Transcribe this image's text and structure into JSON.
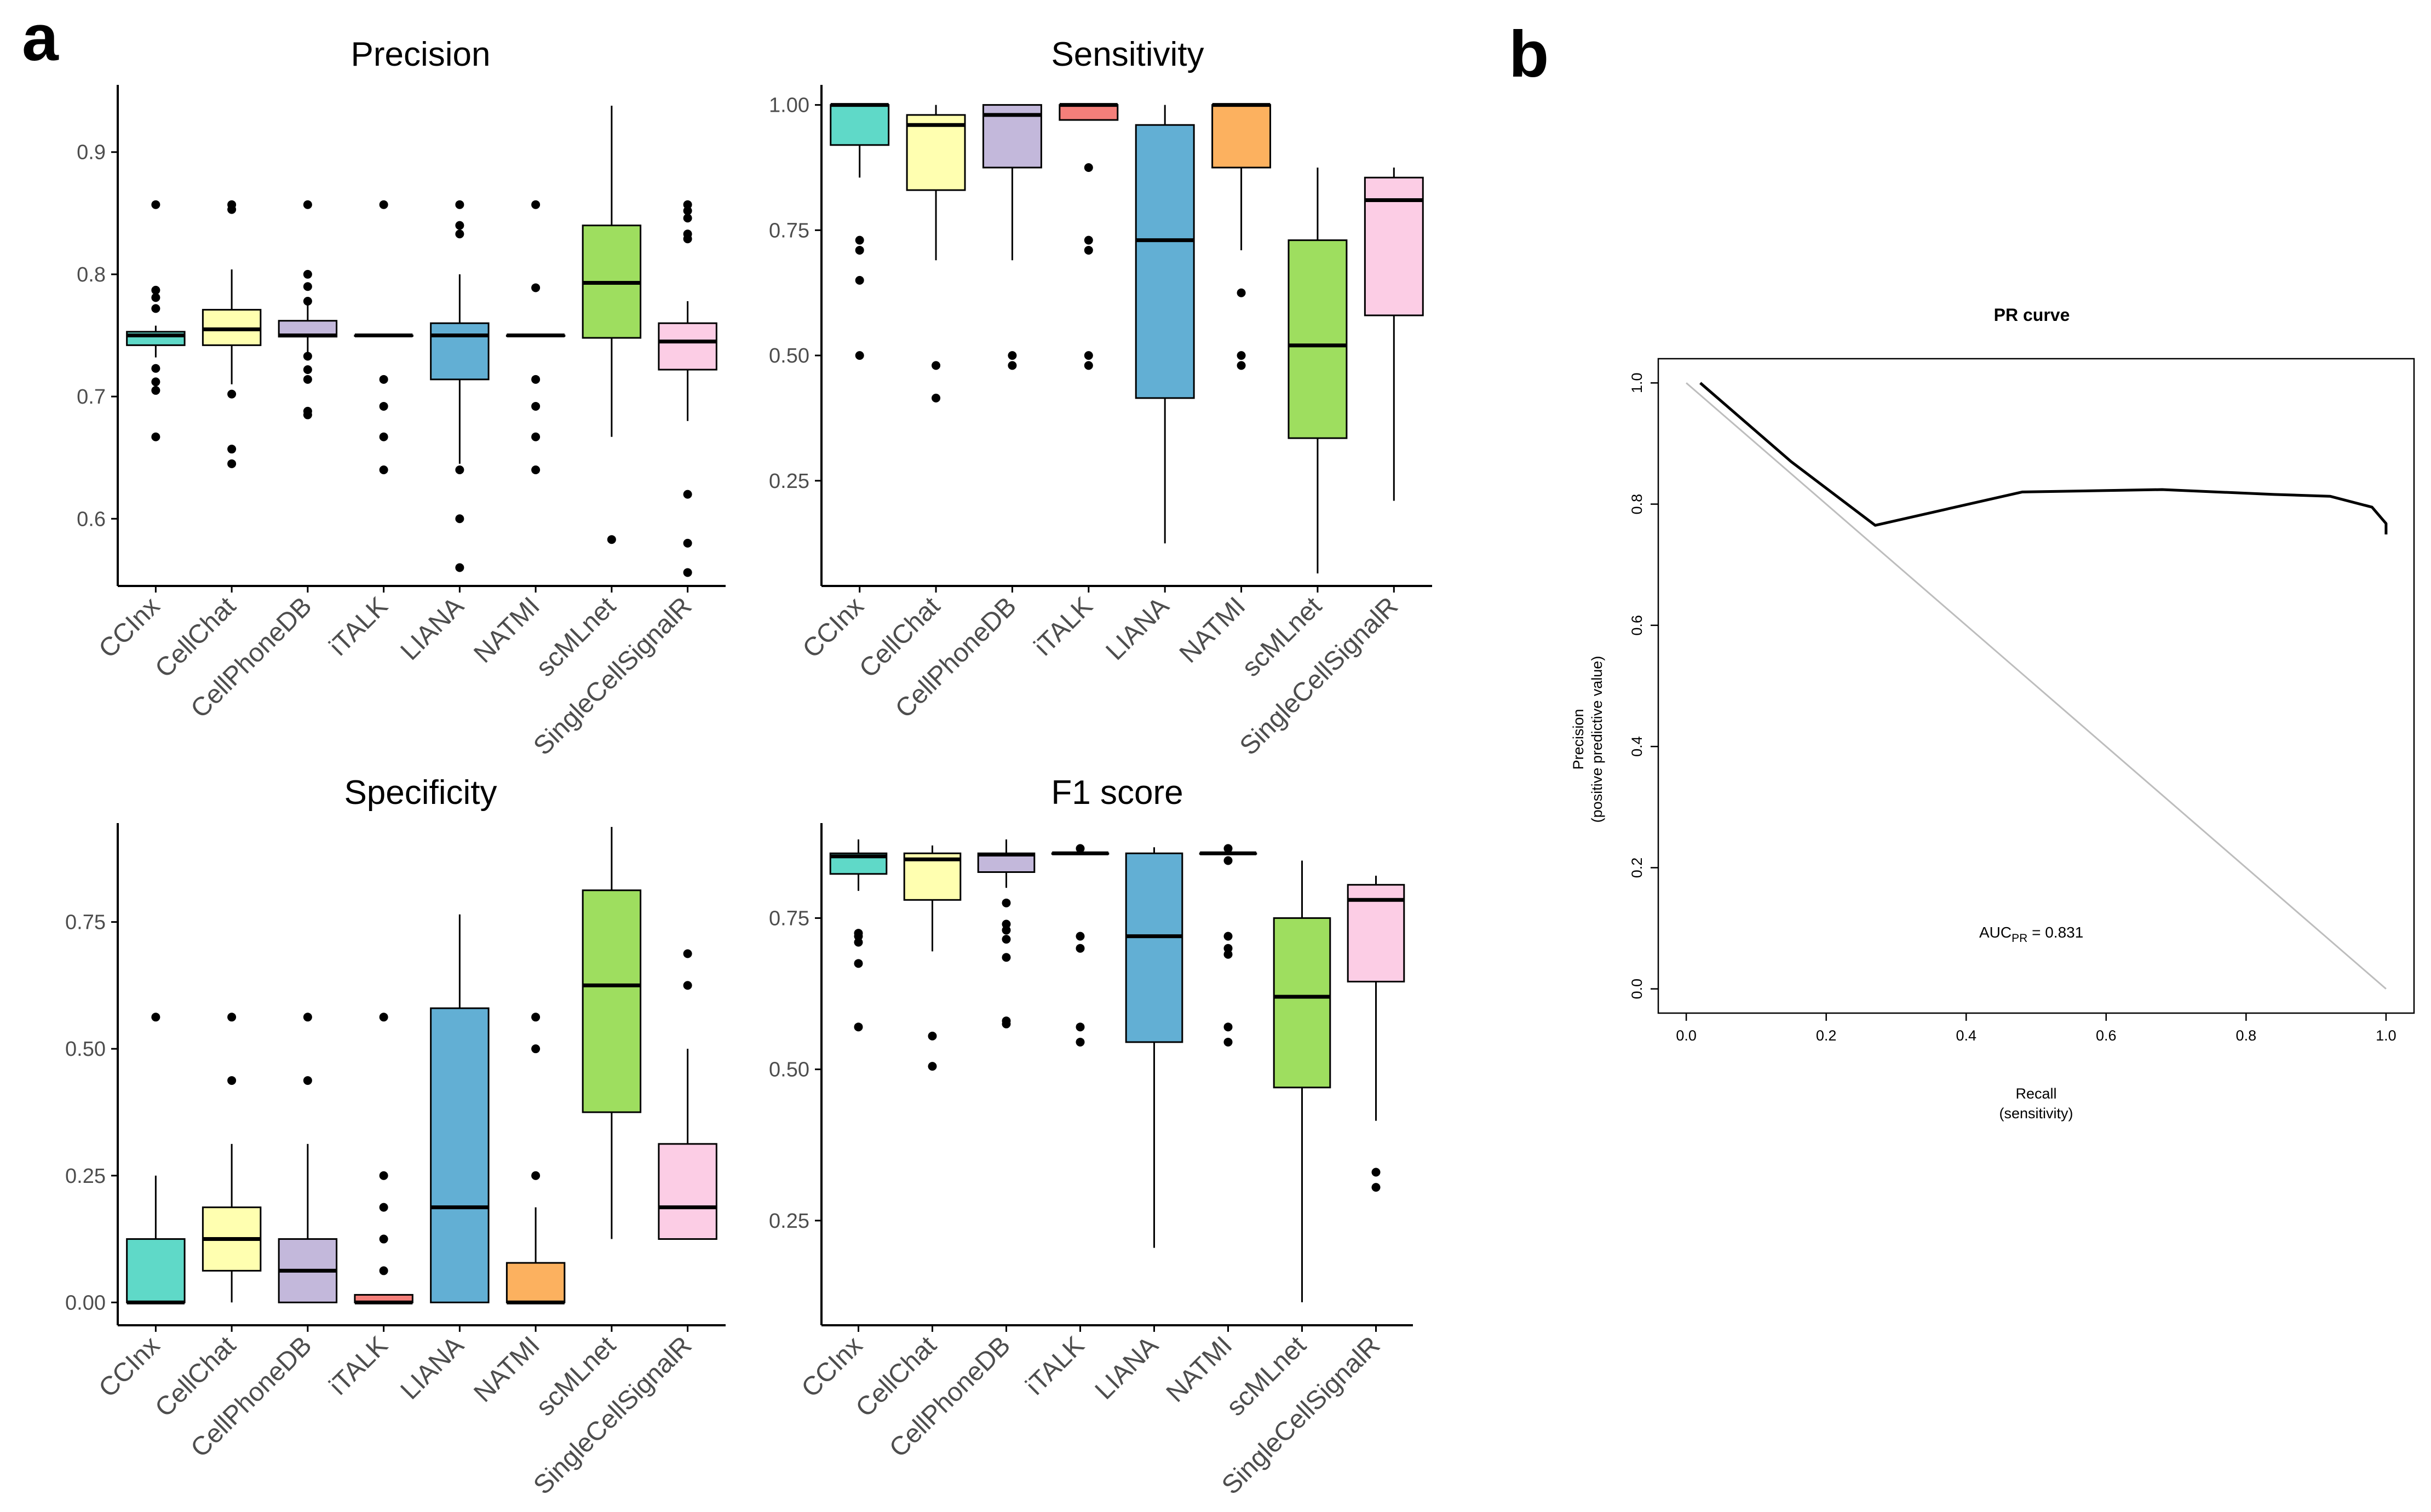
{
  "panel_labels": {
    "a": "a",
    "b": "b"
  },
  "colors": {
    "CCInx": "#5fd9c8",
    "CellChat": "#ffffb0",
    "CellPhoneDB": "#c3b8db",
    "iTALK": "#f47f7a",
    "LIANA": "#62afd4",
    "NATMI": "#fcb15f",
    "scMLnet": "#9ede5f",
    "SingleCellSignalR": "#fccde5",
    "axis": "#000000",
    "tick_text": "#4d4d4d",
    "diagonal": "#bdbdbd"
  },
  "chart_data": [
    {
      "type": "boxplot",
      "title": "Precision",
      "categories": [
        "CCInx",
        "CellChat",
        "CellPhoneDB",
        "iTALK",
        "LIANA",
        "NATMI",
        "scMLnet",
        "SingleCellSignalR"
      ],
      "ylim": [
        0.545,
        0.955
      ],
      "yticks": [
        {
          "v": 0.6,
          "label": "0.6"
        },
        {
          "v": 0.7,
          "label": "0.7"
        },
        {
          "v": 0.8,
          "label": "0.8"
        },
        {
          "v": 0.9,
          "label": "0.9"
        }
      ],
      "boxes": [
        {
          "q1": 0.742,
          "median": 0.75,
          "q3": 0.753,
          "lo": 0.732,
          "hi": 0.758,
          "outliers": [
            0.857,
            0.787,
            0.781,
            0.772,
            0.723,
            0.712,
            0.705,
            0.667
          ]
        },
        {
          "q1": 0.742,
          "median": 0.755,
          "q3": 0.771,
          "lo": 0.71,
          "hi": 0.804,
          "outliers": [
            0.857,
            0.853,
            0.702,
            0.657,
            0.645
          ]
        },
        {
          "q1": 0.749,
          "median": 0.75,
          "q3": 0.762,
          "lo": 0.734,
          "hi": 0.775,
          "outliers": [
            0.857,
            0.8,
            0.79,
            0.778,
            0.733,
            0.722,
            0.714,
            0.688,
            0.685
          ]
        },
        {
          "q1": 0.75,
          "median": 0.75,
          "q3": 0.75,
          "lo": 0.75,
          "hi": 0.75,
          "outliers": [
            0.857,
            0.714,
            0.692,
            0.667,
            0.64
          ]
        },
        {
          "q1": 0.714,
          "median": 0.75,
          "q3": 0.76,
          "lo": 0.645,
          "hi": 0.8,
          "outliers": [
            0.857,
            0.84,
            0.833,
            0.64,
            0.6,
            0.56
          ]
        },
        {
          "q1": 0.75,
          "median": 0.75,
          "q3": 0.75,
          "lo": 0.75,
          "hi": 0.75,
          "outliers": [
            0.857,
            0.789,
            0.714,
            0.692,
            0.667,
            0.64
          ]
        },
        {
          "q1": 0.748,
          "median": 0.793,
          "q3": 0.84,
          "lo": 0.667,
          "hi": 0.938,
          "outliers": [
            0.583
          ]
        },
        {
          "q1": 0.722,
          "median": 0.745,
          "q3": 0.76,
          "lo": 0.68,
          "hi": 0.778,
          "outliers": [
            0.857,
            0.852,
            0.846,
            0.833,
            0.829,
            0.62,
            0.58,
            0.556
          ]
        }
      ]
    },
    {
      "type": "boxplot",
      "title": "Sensitivity",
      "categories": [
        "CCInx",
        "CellChat",
        "CellPhoneDB",
        "iTALK",
        "LIANA",
        "NATMI",
        "scMLnet",
        "SingleCellSignalR"
      ],
      "ylim": [
        0.04,
        1.04
      ],
      "yticks": [
        {
          "v": 0.25,
          "label": "0.25"
        },
        {
          "v": 0.5,
          "label": "0.50"
        },
        {
          "v": 0.75,
          "label": "0.75"
        },
        {
          "v": 1.0,
          "label": "1.00"
        }
      ],
      "boxes": [
        {
          "q1": 0.92,
          "median": 1.0,
          "q3": 1.0,
          "lo": 0.855,
          "hi": 1.0,
          "outliers": [
            0.73,
            0.71,
            0.65,
            0.5
          ]
        },
        {
          "q1": 0.83,
          "median": 0.96,
          "q3": 0.98,
          "lo": 0.69,
          "hi": 1.0,
          "outliers": [
            0.48,
            0.415
          ]
        },
        {
          "q1": 0.875,
          "median": 0.98,
          "q3": 1.0,
          "lo": 0.69,
          "hi": 1.0,
          "outliers": [
            0.5,
            0.48
          ]
        },
        {
          "q1": 0.97,
          "median": 1.0,
          "q3": 1.0,
          "lo": 0.97,
          "hi": 1.0,
          "outliers": [
            0.875,
            0.73,
            0.71,
            0.5,
            0.48
          ]
        },
        {
          "q1": 0.415,
          "median": 0.73,
          "q3": 0.96,
          "lo": 0.125,
          "hi": 1.0,
          "outliers": []
        },
        {
          "q1": 0.875,
          "median": 1.0,
          "q3": 1.0,
          "lo": 0.71,
          "hi": 1.0,
          "outliers": [
            0.625,
            0.5,
            0.48
          ]
        },
        {
          "q1": 0.335,
          "median": 0.52,
          "q3": 0.73,
          "lo": 0.065,
          "hi": 0.875,
          "outliers": []
        },
        {
          "q1": 0.58,
          "median": 0.81,
          "q3": 0.855,
          "lo": 0.21,
          "hi": 0.875,
          "outliers": []
        }
      ]
    },
    {
      "type": "boxplot",
      "title": "Specificity",
      "categories": [
        "CCInx",
        "CellChat",
        "CellPhoneDB",
        "iTALK",
        "LIANA",
        "NATMI",
        "scMLnet",
        "SingleCellSignalR"
      ],
      "ylim": [
        -0.045,
        0.945
      ],
      "yticks": [
        {
          "v": 0.0,
          "label": "0.00"
        },
        {
          "v": 0.25,
          "label": "0.25"
        },
        {
          "v": 0.5,
          "label": "0.50"
        },
        {
          "v": 0.75,
          "label": "0.75"
        }
      ],
      "boxes": [
        {
          "q1": 0.0,
          "median": 0.0,
          "q3": 0.125,
          "lo": 0.0,
          "hi": 0.25,
          "outliers": [
            0.5625
          ]
        },
        {
          "q1": 0.0625,
          "median": 0.125,
          "q3": 0.1875,
          "lo": 0.0,
          "hi": 0.3125,
          "outliers": [
            0.5625,
            0.4375
          ]
        },
        {
          "q1": 0.0,
          "median": 0.0625,
          "q3": 0.125,
          "lo": 0.0,
          "hi": 0.3125,
          "outliers": [
            0.5625,
            0.4375
          ]
        },
        {
          "q1": 0.0,
          "median": 0.0,
          "q3": 0.015,
          "lo": 0.0,
          "hi": 0.015,
          "outliers": [
            0.5625,
            0.25,
            0.1875,
            0.125,
            0.0625
          ]
        },
        {
          "q1": 0.0,
          "median": 0.1875,
          "q3": 0.58,
          "lo": 0.0,
          "hi": 0.765,
          "outliers": []
        },
        {
          "q1": 0.0,
          "median": 0.0,
          "q3": 0.078,
          "lo": 0.0,
          "hi": 0.1875,
          "outliers": [
            0.5625,
            0.5,
            0.25
          ]
        },
        {
          "q1": 0.375,
          "median": 0.625,
          "q3": 0.8125,
          "lo": 0.125,
          "hi": 0.9375,
          "outliers": []
        },
        {
          "q1": 0.125,
          "median": 0.1875,
          "q3": 0.3125,
          "lo": 0.125,
          "hi": 0.5,
          "outliers": [
            0.6875,
            0.625
          ]
        }
      ]
    },
    {
      "type": "boxplot",
      "title": "F1 score",
      "categories": [
        "CCInx",
        "CellChat",
        "CellPhoneDB",
        "iTALK",
        "LIANA",
        "NATMI",
        "scMLnet",
        "SingleCellSignalR"
      ],
      "ylim": [
        0.077,
        0.907
      ],
      "yticks": [
        {
          "v": 0.25,
          "label": "0.25"
        },
        {
          "v": 0.5,
          "label": "0.50"
        },
        {
          "v": 0.75,
          "label": "0.75"
        }
      ],
      "boxes": [
        {
          "q1": 0.823,
          "median": 0.852,
          "q3": 0.857,
          "lo": 0.795,
          "hi": 0.88,
          "outliers": [
            0.725,
            0.72,
            0.71,
            0.675,
            0.57
          ]
        },
        {
          "q1": 0.78,
          "median": 0.847,
          "q3": 0.857,
          "lo": 0.695,
          "hi": 0.87,
          "outliers": [
            0.555,
            0.505
          ]
        },
        {
          "q1": 0.826,
          "median": 0.855,
          "q3": 0.857,
          "lo": 0.8,
          "hi": 0.88,
          "outliers": [
            0.775,
            0.74,
            0.73,
            0.715,
            0.685,
            0.58,
            0.575
          ]
        },
        {
          "q1": 0.857,
          "median": 0.857,
          "q3": 0.857,
          "lo": 0.857,
          "hi": 0.857,
          "outliers": [
            0.865,
            0.72,
            0.7,
            0.57,
            0.545
          ]
        },
        {
          "q1": 0.545,
          "median": 0.72,
          "q3": 0.857,
          "lo": 0.205,
          "hi": 0.867,
          "outliers": []
        },
        {
          "q1": 0.857,
          "median": 0.857,
          "q3": 0.857,
          "lo": 0.857,
          "hi": 0.857,
          "outliers": [
            0.865,
            0.845,
            0.72,
            0.7,
            0.69,
            0.57,
            0.545
          ]
        },
        {
          "q1": 0.47,
          "median": 0.62,
          "q3": 0.75,
          "lo": 0.115,
          "hi": 0.845,
          "outliers": []
        },
        {
          "q1": 0.645,
          "median": 0.78,
          "q3": 0.805,
          "lo": 0.415,
          "hi": 0.82,
          "outliers": [
            0.33,
            0.305
          ]
        }
      ]
    },
    {
      "type": "line",
      "title": "PR curve",
      "xlabel_line1": "Recall",
      "xlabel_line2": "(sensitivity)",
      "ylabel_line1": "Precision",
      "ylabel_line2": "(positive predictive value)",
      "xlim": [
        -0.04,
        1.04
      ],
      "ylim": [
        -0.04,
        1.04
      ],
      "xticks": [
        {
          "v": 0.0,
          "label": "0.0"
        },
        {
          "v": 0.2,
          "label": "0.2"
        },
        {
          "v": 0.4,
          "label": "0.4"
        },
        {
          "v": 0.6,
          "label": "0.6"
        },
        {
          "v": 0.8,
          "label": "0.8"
        },
        {
          "v": 1.0,
          "label": "1.0"
        }
      ],
      "yticks": [
        {
          "v": 0.0,
          "label": "0.0"
        },
        {
          "v": 0.2,
          "label": "0.2"
        },
        {
          "v": 0.4,
          "label": "0.4"
        },
        {
          "v": 0.6,
          "label": "0.6"
        },
        {
          "v": 0.8,
          "label": "0.8"
        },
        {
          "v": 1.0,
          "label": "1.0"
        }
      ],
      "series": [
        {
          "name": "PR curve",
          "x": [
            0.02,
            0.15,
            0.27,
            0.48,
            0.68,
            0.84,
            0.92,
            0.98,
            1.0,
            1.0
          ],
          "y": [
            1.0,
            0.87,
            0.765,
            0.82,
            0.824,
            0.816,
            0.813,
            0.795,
            0.768,
            0.75
          ]
        },
        {
          "name": "reference diagonal",
          "x": [
            0.0,
            1.0
          ],
          "y": [
            1.0,
            0.0
          ]
        }
      ],
      "annotation": {
        "text_main": "AUC",
        "text_sub": "PR",
        "text_value": " = 0.831",
        "x": 0.5,
        "y": 0.1
      }
    }
  ]
}
